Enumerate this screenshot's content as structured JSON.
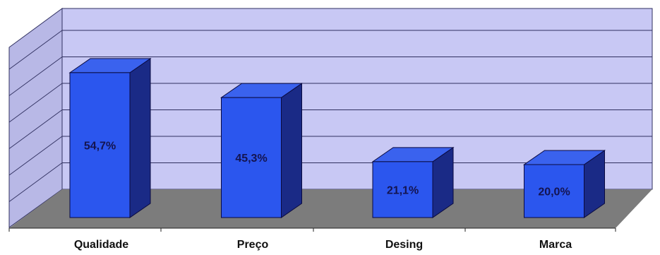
{
  "chart_data": {
    "type": "bar",
    "categories": [
      "Qualidade",
      "Preço",
      "Desing",
      "Marca"
    ],
    "values": [
      54.7,
      45.3,
      21.1,
      20.0
    ],
    "value_labels": [
      "54,7%",
      "45,3%",
      "21,1%",
      "20,0%"
    ],
    "ylim": [
      0,
      70
    ],
    "grid": true,
    "three_d": true,
    "colors": {
      "wall": "#c8c8f4",
      "side_wall": "#b8b8e6",
      "floor": "#7c7c7c",
      "bar_front": "#2b56ee",
      "bar_top": "#3a62ee",
      "bar_side": "#1a2a86",
      "grid": "#303060"
    }
  }
}
